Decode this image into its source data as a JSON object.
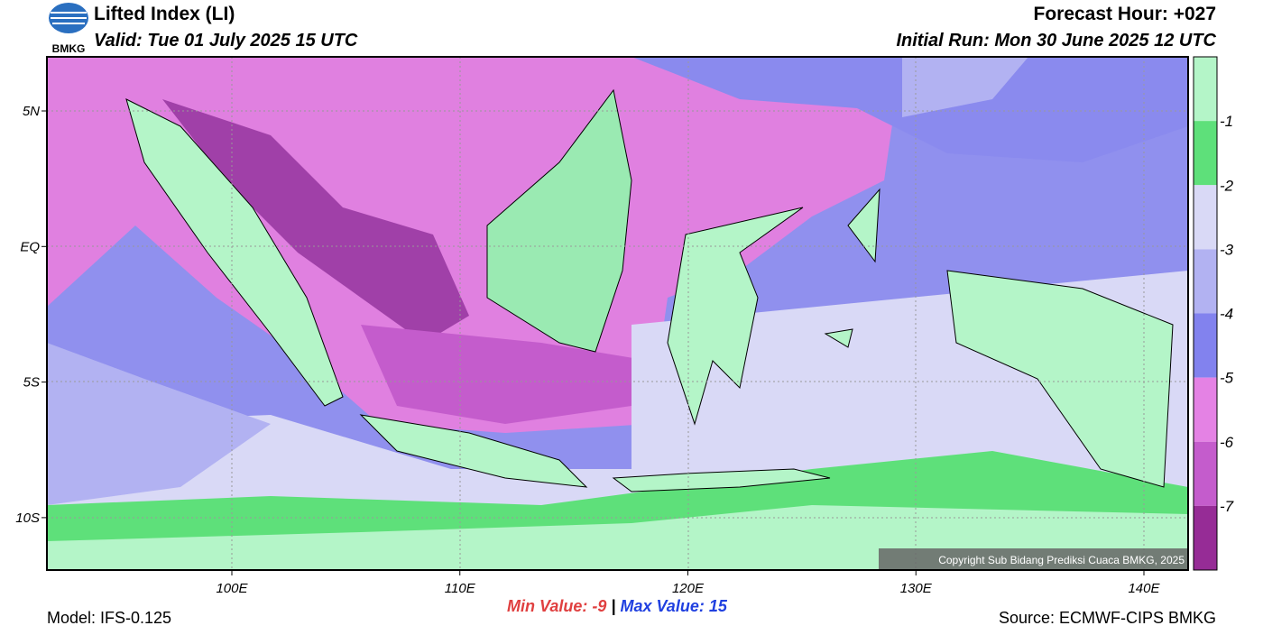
{
  "header": {
    "title": "Lifted Index (LI)",
    "valid": "Valid: Tue 01 July 2025 15 UTC",
    "forecast_hour": "Forecast Hour: +027",
    "initial_run": "Initial Run: Mon 30 June 2025 12 UTC",
    "logo_text": "BMKG"
  },
  "map": {
    "lat_labels": [
      "5N",
      "EQ",
      "5S",
      "10S"
    ],
    "lon_labels": [
      "100E",
      "110E",
      "120E",
      "130E",
      "140E"
    ],
    "copyright": "Copyright Sub Bidang Prediksi Cuaca BMKG, 2025"
  },
  "colorbar": {
    "colors": [
      "#b4f5c8",
      "#5ee07a",
      "#d9d9f6",
      "#b2b2f2",
      "#8282ee",
      "#e482e4",
      "#c45ccc",
      "#962c96"
    ],
    "labels": [
      "-1",
      "-2",
      "-3",
      "-4",
      "-5",
      "-6",
      "-7"
    ]
  },
  "footer": {
    "min_label": "Min Value:",
    "min_value": "-9",
    "separator": "|",
    "max_label": "Max Value:",
    "max_value": "15",
    "model": "Model: IFS-0.125",
    "source": "Source: ECMWF-CIPS BMKG"
  }
}
